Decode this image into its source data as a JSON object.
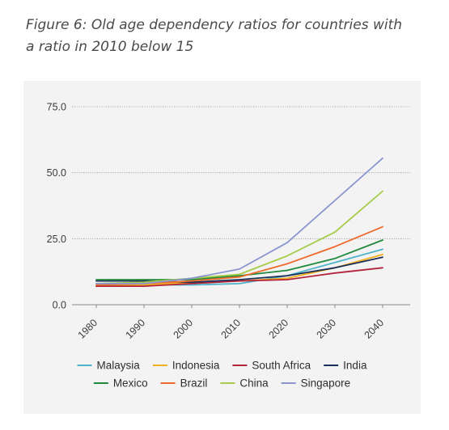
{
  "caption": {
    "line1": "Figure 6: Old age dependency ratios for countries with",
    "line2": "a ratio in 2010 below 15"
  },
  "chart_data": {
    "type": "line",
    "title": "Figure 6: Old age dependency ratios for countries with a ratio in 2010 below 15",
    "xlabel": "",
    "ylabel": "",
    "x": [
      "1980",
      "1990",
      "2000",
      "2010",
      "2020",
      "2030",
      "2040"
    ],
    "ylim": [
      0,
      75
    ],
    "yticks": [
      "0.0",
      "25.0",
      "50.0",
      "75.0"
    ],
    "grid": true,
    "legend_position": "bottom",
    "series": [
      {
        "name": "Malaysia",
        "color": "#4fb3c9",
        "values": [
          7.5,
          7.5,
          7.5,
          8.0,
          11.0,
          16.0,
          21.0
        ]
      },
      {
        "name": "Indonesia",
        "color": "#f2b01e",
        "values": [
          7.0,
          7.5,
          8.5,
          9.0,
          10.0,
          14.0,
          19.0
        ]
      },
      {
        "name": "South Africa",
        "color": "#b3243c",
        "values": [
          7.0,
          7.0,
          8.0,
          9.0,
          9.5,
          12.0,
          14.0
        ]
      },
      {
        "name": "India",
        "color": "#1b2f5a",
        "values": [
          9.0,
          9.0,
          8.5,
          9.5,
          11.0,
          14.0,
          18.0
        ]
      },
      {
        "name": "Mexico",
        "color": "#1f8a3c",
        "values": [
          9.5,
          9.5,
          9.5,
          11.0,
          13.0,
          17.5,
          24.5
        ]
      },
      {
        "name": "Brazil",
        "color": "#ee6a2a",
        "values": [
          7.5,
          8.0,
          9.0,
          10.5,
          15.5,
          22.0,
          29.5
        ]
      },
      {
        "name": "China",
        "color": "#a6cc4a",
        "values": [
          8.0,
          8.5,
          10.0,
          11.5,
          18.5,
          27.5,
          43.0
        ]
      },
      {
        "name": "Singapore",
        "color": "#8b95cf",
        "values": [
          8.0,
          8.0,
          10.0,
          13.5,
          23.5,
          39.5,
          55.5
        ]
      }
    ]
  }
}
